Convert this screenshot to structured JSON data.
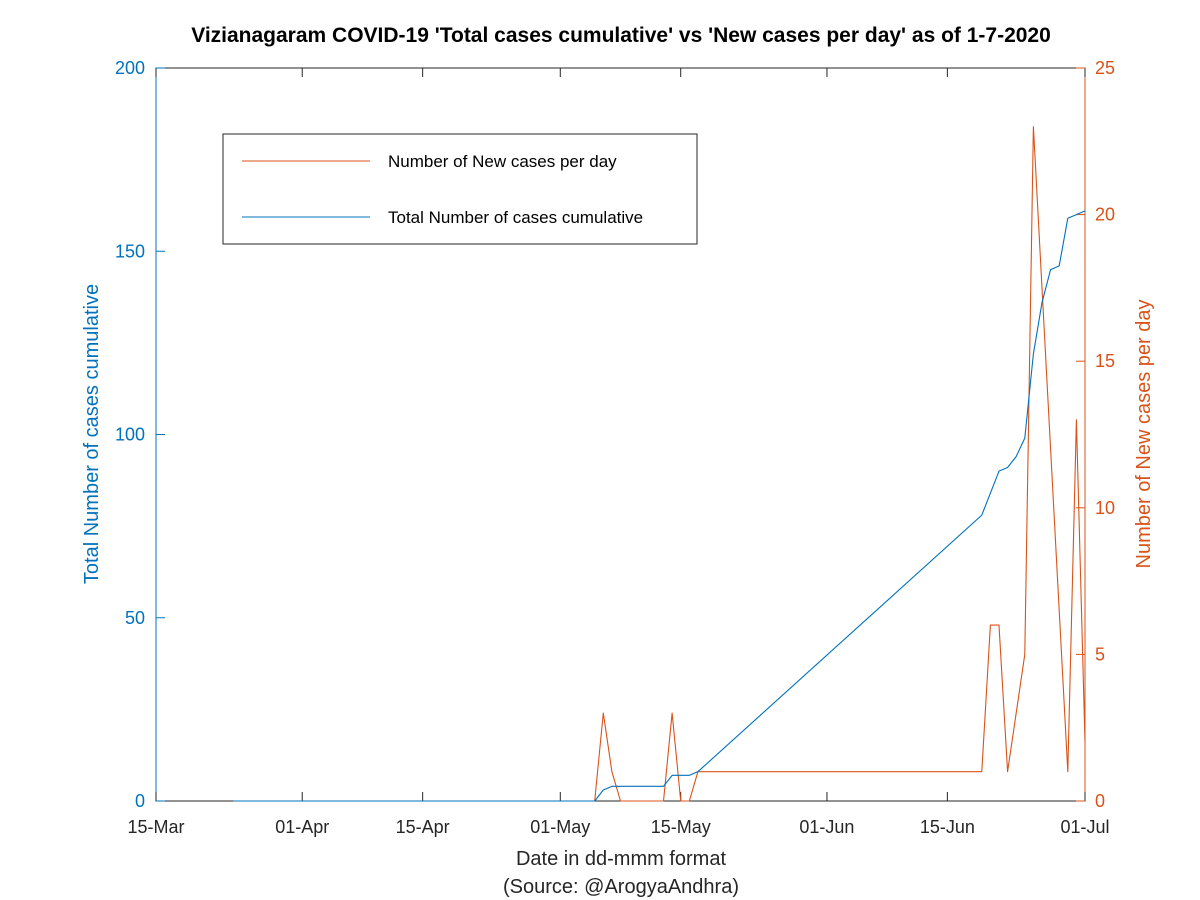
{
  "chart_data": {
    "type": "line",
    "title": "Vizianagaram COVID-19 'Total cases cumulative' vs 'New cases per day' as of 1-7-2020",
    "xlabel": "Date in dd-mmm format",
    "source": "(Source: @ArogyaAndhra)",
    "ylabel_left": "Total Number of cases cumulative",
    "ylabel_right": "Number of New cases per day",
    "x_ticks": [
      "15-Mar",
      "01-Apr",
      "15-Apr",
      "01-May",
      "15-May",
      "01-Jun",
      "15-Jun",
      "01-Jul"
    ],
    "y_left_ticks": [
      "0",
      "50",
      "100",
      "150",
      "200"
    ],
    "y_right_ticks": [
      "0",
      "5",
      "10",
      "15",
      "20",
      "25"
    ],
    "x_range": [
      "2020-03-15",
      "2020-07-01"
    ],
    "ylim_left": [
      0,
      200
    ],
    "ylim_right": [
      0,
      25
    ],
    "legend_position": "top-left",
    "grid": false,
    "colors": {
      "left_axis": "#0072BD",
      "right_axis": "#D95319"
    },
    "series": [
      {
        "name": "Number of New cases per day",
        "axis": "right",
        "color": "#D95319",
        "points": [
          [
            "2020-03-24",
            0
          ],
          [
            "2020-05-05",
            0
          ],
          [
            "2020-05-06",
            3
          ],
          [
            "2020-05-07",
            1
          ],
          [
            "2020-05-08",
            0
          ],
          [
            "2020-05-13",
            0
          ],
          [
            "2020-05-14",
            3
          ],
          [
            "2020-05-15",
            0
          ],
          [
            "2020-05-16",
            0
          ],
          [
            "2020-05-17",
            1
          ],
          [
            "2020-06-19",
            1
          ],
          [
            "2020-06-20",
            6
          ],
          [
            "2020-06-21",
            6
          ],
          [
            "2020-06-22",
            1
          ],
          [
            "2020-06-24",
            5
          ],
          [
            "2020-06-25",
            23
          ],
          [
            "2020-06-29",
            1
          ],
          [
            "2020-06-30",
            13
          ],
          [
            "2020-07-01",
            2
          ]
        ]
      },
      {
        "name": "Total Number of cases cumulative",
        "axis": "left",
        "color": "#0072BD",
        "points": [
          [
            "2020-03-24",
            0
          ],
          [
            "2020-05-05",
            0
          ],
          [
            "2020-05-06",
            3
          ],
          [
            "2020-05-07",
            4
          ],
          [
            "2020-05-13",
            4
          ],
          [
            "2020-05-14",
            7
          ],
          [
            "2020-05-16",
            7
          ],
          [
            "2020-05-17",
            8
          ],
          [
            "2020-06-19",
            78
          ],
          [
            "2020-06-21",
            90
          ],
          [
            "2020-06-22",
            91
          ],
          [
            "2020-06-23",
            94
          ],
          [
            "2020-06-24",
            99
          ],
          [
            "2020-06-25",
            122
          ],
          [
            "2020-06-26",
            136
          ],
          [
            "2020-06-27",
            145
          ],
          [
            "2020-06-28",
            146
          ],
          [
            "2020-06-29",
            159
          ],
          [
            "2020-06-30",
            160
          ],
          [
            "2020-07-01",
            161
          ]
        ]
      }
    ]
  }
}
